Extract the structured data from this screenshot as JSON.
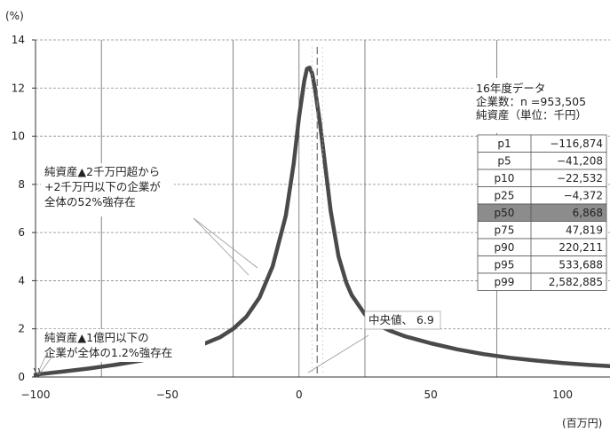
{
  "chart_data": {
    "type": "line",
    "ylabel": "(%)",
    "xlabel": "(百万円)",
    "xlim": [
      -100,
      118
    ],
    "ylim": [
      0,
      14
    ],
    "x_ticks": [
      -100,
      -50,
      0,
      50,
      100
    ],
    "y_ticks": [
      0,
      2,
      4,
      6,
      8,
      10,
      12,
      14
    ],
    "grid": true,
    "x_gridlines": [
      -75,
      -25,
      0,
      25,
      75
    ],
    "series": [
      {
        "x": [
          -100,
          -90,
          -80,
          -70,
          -60,
          -50,
          -40,
          -30,
          -25,
          -20,
          -15,
          -10,
          -5,
          -2,
          0,
          2,
          3,
          4,
          5,
          6,
          8,
          10,
          12,
          15,
          18,
          20,
          25,
          30,
          35,
          40,
          50,
          60,
          70,
          80,
          90,
          100,
          110,
          118
        ],
        "values": [
          0.1,
          0.22,
          0.35,
          0.5,
          0.68,
          0.9,
          1.2,
          1.65,
          2.0,
          2.5,
          3.3,
          4.6,
          6.7,
          8.9,
          10.8,
          12.3,
          12.8,
          12.85,
          12.6,
          12.0,
          10.5,
          8.7,
          6.9,
          5.0,
          3.9,
          3.4,
          2.6,
          2.15,
          1.9,
          1.7,
          1.4,
          1.15,
          0.95,
          0.8,
          0.68,
          0.58,
          0.5,
          0.45
        ]
      }
    ],
    "median_x": 6.9,
    "annotations": [
      {
        "lines": [
          "純資産▲2千万円超から",
          "+2千万円以下の企業が",
          "全体の52%強存在"
        ]
      },
      {
        "lines": [
          "純資産▲1億円以下の",
          "企業が全体の1.2%強存在"
        ]
      },
      {
        "lines": [
          "中央値、 6.9"
        ]
      }
    ],
    "table": {
      "title_lines": [
        "16年度データ",
        "企業数：n =953,505",
        "純資産（単位：千円）"
      ],
      "rows": [
        {
          "label": "p1",
          "value": "−116,874",
          "highlight": false
        },
        {
          "label": "p5",
          "value": "−41,208",
          "highlight": false
        },
        {
          "label": "p10",
          "value": "−22,532",
          "highlight": false
        },
        {
          "label": "p25",
          "value": "−4,372",
          "highlight": false
        },
        {
          "label": "p50",
          "value": "6,868",
          "highlight": true
        },
        {
          "label": "p75",
          "value": "47,819",
          "highlight": false
        },
        {
          "label": "p90",
          "value": "220,211",
          "highlight": false
        },
        {
          "label": "p95",
          "value": "533,688",
          "highlight": false
        },
        {
          "label": "p99",
          "value": "2,582,885",
          "highlight": false
        }
      ]
    }
  }
}
